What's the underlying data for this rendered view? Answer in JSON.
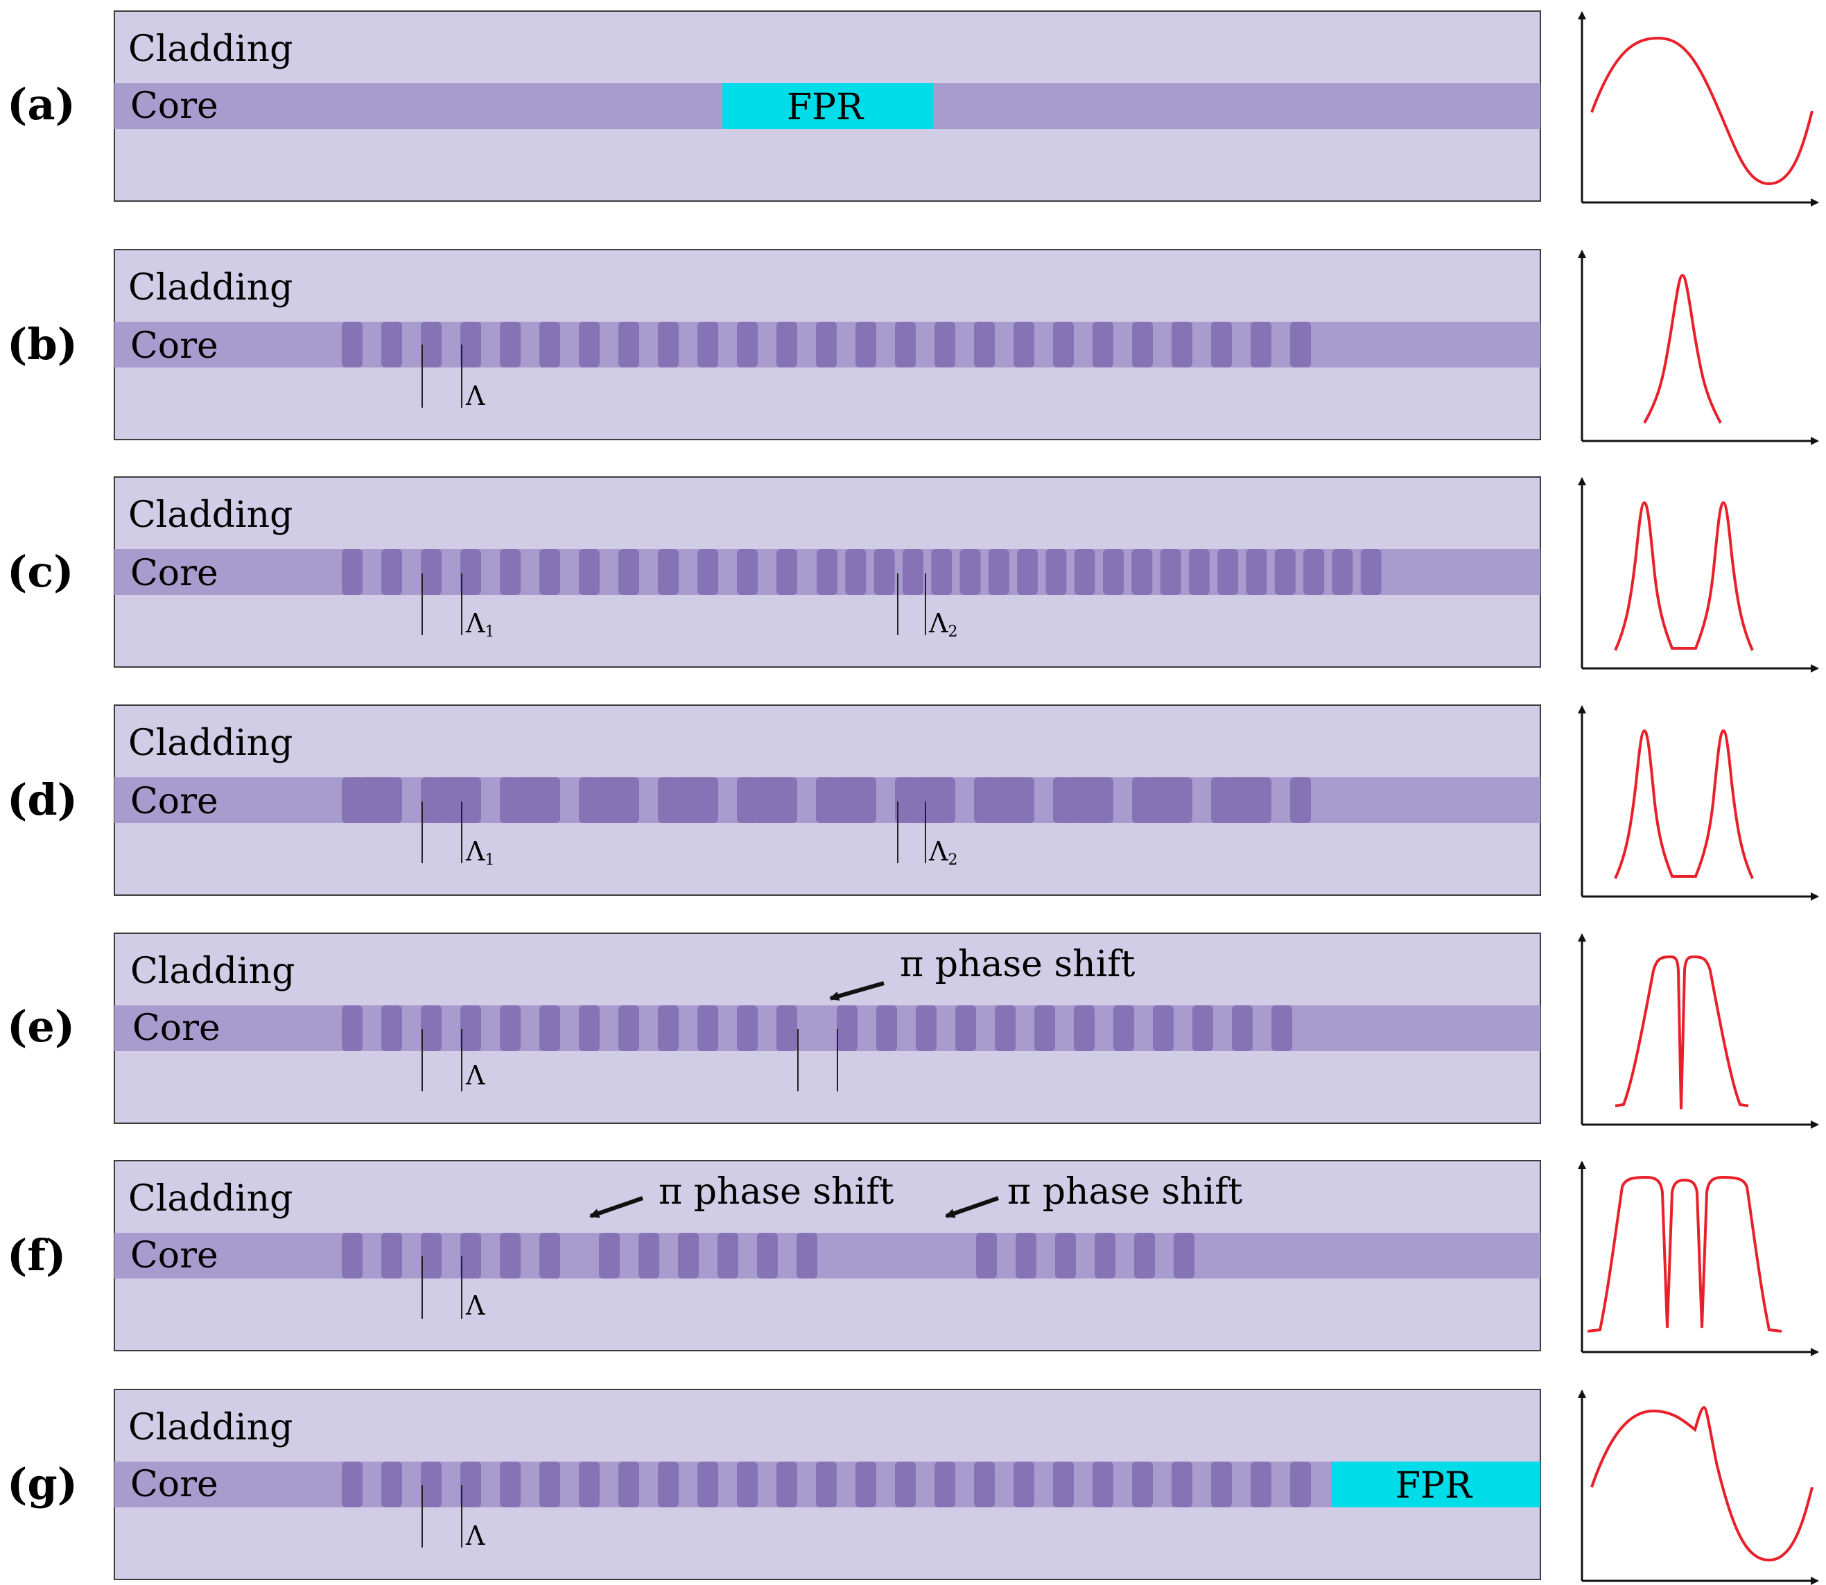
{
  "colors": {
    "cladding": "#d2cde6",
    "core": "#a89ccf",
    "grating": "#8673b5",
    "fpr": "#00dce8",
    "curve": "#e8202a",
    "outline": "#3c3c3c",
    "axis": "#111111"
  },
  "panels": [
    {
      "label": "(a)",
      "cladding_label": "Cladding",
      "core_label": "Core",
      "fpr_label": "FPR",
      "period_labels": [],
      "phase_shift_labels": [],
      "spectrum": "fabry-perot sinusoid"
    },
    {
      "label": "(b)",
      "cladding_label": "Cladding",
      "core_label": "Core",
      "period_labels": [
        {
          "base": "Λ",
          "sub": ""
        }
      ],
      "phase_shift_labels": [],
      "spectrum": "single peak"
    },
    {
      "label": "(c)",
      "cladding_label": "Cladding",
      "core_label": "Core",
      "period_labels": [
        {
          "base": "Λ",
          "sub": "1"
        },
        {
          "base": "Λ",
          "sub": "2"
        }
      ],
      "phase_shift_labels": [],
      "spectrum": "dual peak"
    },
    {
      "label": "(d)",
      "cladding_label": "Cladding",
      "core_label": "Core",
      "period_labels": [
        {
          "base": "Λ",
          "sub": "1"
        },
        {
          "base": "Λ",
          "sub": "2"
        }
      ],
      "phase_shift_labels": [],
      "spectrum": "dual peak"
    },
    {
      "label": "(e)",
      "cladding_label": "Cladding",
      "core_label": "Core",
      "period_labels": [
        {
          "base": "Λ",
          "sub": ""
        }
      ],
      "phase_shift_labels": [
        "π phase shift"
      ],
      "spectrum": "flat top with one notch"
    },
    {
      "label": "(f)",
      "cladding_label": "Cladding",
      "core_label": "Core",
      "period_labels": [
        {
          "base": "Λ",
          "sub": ""
        }
      ],
      "phase_shift_labels": [
        "π phase shift",
        "π phase shift"
      ],
      "spectrum": "flat top with two notches"
    },
    {
      "label": "(g)",
      "cladding_label": "Cladding",
      "core_label": "Core",
      "fpr_label": "FPR",
      "period_labels": [
        {
          "base": "Λ",
          "sub": ""
        }
      ],
      "phase_shift_labels": [],
      "spectrum": "sinusoid with grating peak"
    }
  ]
}
